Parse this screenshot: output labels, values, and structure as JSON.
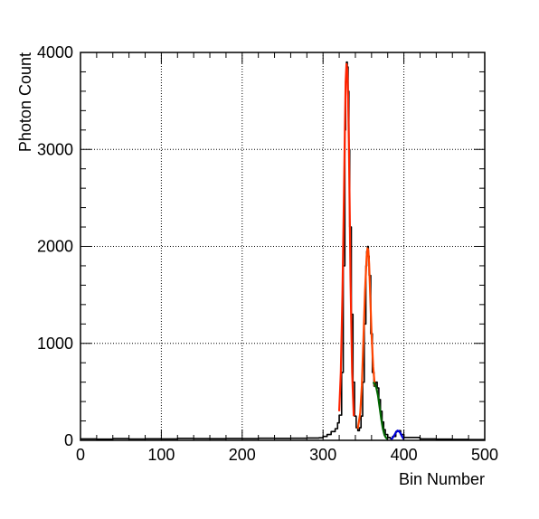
{
  "chart_data": {
    "type": "line",
    "title": "",
    "xlabel": "Bin Number",
    "ylabel": "Photon Count",
    "xlim": [
      0,
      500
    ],
    "ylim": [
      0,
      4000
    ],
    "grid": true,
    "x_ticks": [
      0,
      100,
      200,
      300,
      400,
      500
    ],
    "x_tick_labels": [
      "0",
      "100",
      "200",
      "300",
      "400",
      "500"
    ],
    "y_ticks": [
      0,
      1000,
      2000,
      3000,
      4000
    ],
    "y_tick_labels": [
      "0",
      "1000",
      "2000",
      "3000",
      "4000"
    ],
    "series": [
      {
        "color": "#000000",
        "style": "histogram",
        "x": [
          0,
          20,
          40,
          60,
          80,
          100,
          120,
          140,
          160,
          180,
          200,
          220,
          240,
          260,
          280,
          295,
          300,
          305,
          310,
          315,
          318,
          320,
          323,
          325,
          327,
          328,
          329,
          330,
          331,
          332,
          333,
          335,
          337,
          339,
          341,
          343,
          345,
          347,
          349,
          351,
          353,
          354,
          355,
          356,
          357,
          359,
          361,
          363,
          365,
          367,
          369,
          371,
          373,
          375,
          377,
          380,
          383,
          386,
          390,
          393,
          396,
          400,
          420,
          440,
          460,
          480,
          500
        ],
        "y": [
          15,
          12,
          18,
          14,
          16,
          15,
          20,
          18,
          17,
          19,
          18,
          22,
          20,
          22,
          24,
          26,
          40,
          60,
          90,
          120,
          180,
          260,
          700,
          1800,
          3200,
          3700,
          3900,
          3850,
          3600,
          3000,
          2200,
          1300,
          600,
          250,
          130,
          100,
          130,
          250,
          600,
          1200,
          1800,
          1950,
          2000,
          1900,
          1700,
          1100,
          700,
          560,
          600,
          540,
          420,
          300,
          190,
          110,
          60,
          30,
          20,
          40,
          90,
          100,
          60,
          30,
          15,
          12,
          10,
          8,
          8
        ]
      },
      {
        "color": "#ff2200",
        "style": "fit",
        "x": [
          320,
          322,
          324,
          326,
          327,
          328,
          329,
          330,
          331,
          332,
          333,
          334,
          336,
          338
        ],
        "y": [
          300,
          700,
          1500,
          2600,
          3200,
          3700,
          3880,
          3820,
          3550,
          3050,
          2350,
          1650,
          700,
          250
        ]
      },
      {
        "color": "#ff4400",
        "style": "fit",
        "x": [
          343,
          346,
          348,
          350,
          352,
          354,
          355,
          356,
          357,
          358,
          360,
          362,
          364
        ],
        "y": [
          120,
          280,
          560,
          1050,
          1550,
          1900,
          1980,
          1960,
          1820,
          1580,
          1100,
          760,
          560
        ]
      },
      {
        "color": "#006600",
        "style": "fit",
        "x": [
          362,
          364,
          366,
          368,
          370,
          372,
          374,
          376,
          378,
          380
        ],
        "y": [
          600,
          580,
          540,
          460,
          340,
          220,
          120,
          55,
          25,
          12
        ]
      },
      {
        "color": "#0000dd",
        "style": "fit",
        "x": [
          384,
          386,
          388,
          390,
          392,
          394,
          396,
          398,
          400
        ],
        "y": [
          8,
          25,
          50,
          80,
          100,
          95,
          70,
          35,
          12
        ]
      }
    ]
  }
}
